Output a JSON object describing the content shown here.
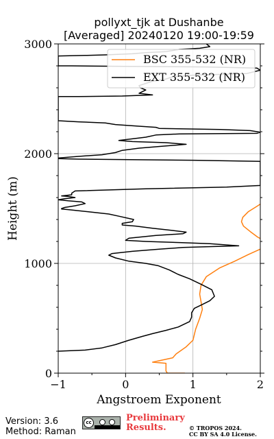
{
  "chart_data": {
    "type": "line",
    "title": "pollyxt_tjk at Dushanbe",
    "subtitle": "[Averaged] 20240120 19:00-19:59",
    "xlabel": "Angstroem Exponent",
    "ylabel": "Height (m)",
    "xlim": [
      -1,
      2
    ],
    "ylim": [
      0,
      3000
    ],
    "xticks": [
      -1,
      0,
      1,
      2
    ],
    "yticks": [
      0,
      1000,
      2000,
      3000
    ],
    "grid": true,
    "legend_position": "upper right",
    "series": [
      {
        "name": "BSC 355-532 (NR)",
        "color": "#ff7f0e",
        "points": [
          [
            0.88,
            0
          ],
          [
            0.62,
            0
          ],
          [
            0.6,
            20
          ],
          [
            0.6,
            90
          ],
          [
            0.4,
            100
          ],
          [
            0.7,
            140
          ],
          [
            0.75,
            175
          ],
          [
            0.9,
            240
          ],
          [
            1.0,
            300
          ],
          [
            1.04,
            400
          ],
          [
            1.1,
            500
          ],
          [
            1.14,
            580
          ],
          [
            1.12,
            650
          ],
          [
            1.1,
            720
          ],
          [
            1.12,
            800
          ],
          [
            1.2,
            880
          ],
          [
            1.4,
            960
          ],
          [
            1.62,
            1020
          ],
          [
            1.82,
            1080
          ],
          [
            2.0,
            1130
          ],
          [
            2.05,
            1170
          ],
          [
            2.05,
            1210
          ],
          [
            1.96,
            1240
          ],
          [
            1.85,
            1290
          ],
          [
            1.75,
            1340
          ],
          [
            1.72,
            1380
          ],
          [
            1.74,
            1420
          ],
          [
            1.82,
            1470
          ],
          [
            1.95,
            1520
          ],
          [
            2.05,
            1560
          ]
        ]
      },
      {
        "name": "EXT 355-532 (NR)",
        "color": "#000000",
        "points": [
          [
            -1.0,
            200
          ],
          [
            -0.6,
            210
          ],
          [
            -0.35,
            230
          ],
          [
            -0.15,
            260
          ],
          [
            0.05,
            300
          ],
          [
            0.25,
            335
          ],
          [
            0.4,
            360
          ],
          [
            0.6,
            390
          ],
          [
            0.78,
            420
          ],
          [
            0.95,
            470
          ],
          [
            0.98,
            510
          ],
          [
            0.98,
            550
          ],
          [
            1.02,
            590
          ],
          [
            1.12,
            620
          ],
          [
            1.25,
            660
          ],
          [
            1.32,
            700
          ],
          [
            1.28,
            760
          ],
          [
            1.12,
            810
          ],
          [
            0.95,
            860
          ],
          [
            0.78,
            900
          ],
          [
            0.65,
            940
          ],
          [
            0.48,
            980
          ],
          [
            0.3,
            1000
          ],
          [
            0.05,
            1020
          ],
          [
            -0.15,
            1050
          ],
          [
            -0.25,
            1075
          ],
          [
            -0.2,
            1090
          ],
          [
            0.1,
            1110
          ],
          [
            0.5,
            1130
          ],
          [
            0.85,
            1145
          ],
          [
            1.1,
            1150
          ],
          [
            1.68,
            1160
          ],
          [
            1.25,
            1180
          ],
          [
            0.8,
            1190
          ],
          [
            0.3,
            1200
          ],
          [
            0.0,
            1210
          ],
          [
            0.05,
            1230
          ],
          [
            0.45,
            1255
          ],
          [
            0.85,
            1270
          ],
          [
            0.9,
            1285
          ],
          [
            0.7,
            1300
          ],
          [
            0.4,
            1320
          ],
          [
            0.15,
            1340
          ],
          [
            -0.05,
            1350
          ],
          [
            -0.05,
            1365
          ],
          [
            0.1,
            1380
          ],
          [
            0.12,
            1400
          ],
          [
            -0.1,
            1430
          ],
          [
            -0.25,
            1450
          ],
          [
            -0.55,
            1470
          ],
          [
            -0.85,
            1490
          ],
          [
            -0.95,
            1495
          ],
          [
            -0.95,
            1500
          ],
          [
            -0.9,
            1510
          ],
          [
            -0.75,
            1525
          ],
          [
            -0.6,
            1545
          ],
          [
            -0.65,
            1560
          ],
          [
            -0.85,
            1570
          ],
          [
            -1.0,
            1580
          ],
          [
            -0.9,
            1590
          ],
          [
            -0.75,
            1600
          ],
          [
            -0.85,
            1610
          ],
          [
            -0.95,
            1615
          ],
          [
            -0.8,
            1625
          ],
          [
            -0.8,
            1640
          ],
          [
            -0.75,
            1660
          ],
          [
            0.3,
            1680
          ],
          [
            1.5,
            1695
          ],
          [
            2.0,
            1710
          ],
          [
            2.0,
            1930
          ],
          [
            1.0,
            1940
          ],
          [
            -0.7,
            1950
          ],
          [
            -1.0,
            1955
          ],
          [
            -1.0,
            1960
          ],
          [
            -0.7,
            1975
          ],
          [
            -0.35,
            1990
          ],
          [
            -0.15,
            2010
          ],
          [
            -0.05,
            2030
          ],
          [
            0.2,
            2050
          ],
          [
            0.6,
            2070
          ],
          [
            0.9,
            2085
          ],
          [
            0.6,
            2100
          ],
          [
            0.1,
            2110
          ],
          [
            -0.1,
            2120
          ],
          [
            0.1,
            2135
          ],
          [
            0.3,
            2150
          ],
          [
            0.45,
            2170
          ],
          [
            0.8,
            2180
          ],
          [
            1.95,
            2185
          ],
          [
            2.0,
            2195
          ],
          [
            1.85,
            2210
          ],
          [
            1.4,
            2220
          ],
          [
            0.5,
            2230
          ],
          [
            0.45,
            2240
          ],
          [
            0.2,
            2250
          ],
          [
            -0.15,
            2265
          ],
          [
            -0.3,
            2280
          ],
          [
            -0.7,
            2290
          ],
          [
            -1.0,
            2300
          ],
          [
            -1.0,
            2520
          ],
          [
            -0.7,
            2520
          ],
          [
            -0.05,
            2525
          ],
          [
            0.4,
            2535
          ],
          [
            0.2,
            2550
          ],
          [
            0.25,
            2565
          ],
          [
            0.3,
            2580
          ],
          [
            0.22,
            2600
          ],
          [
            0.2,
            2620
          ],
          [
            0.3,
            2640
          ],
          [
            0.4,
            2660
          ],
          [
            0.6,
            2680
          ],
          [
            0.7,
            2700
          ],
          [
            1.0,
            2715
          ],
          [
            1.8,
            2730
          ],
          [
            2.0,
            2760
          ],
          [
            1.95,
            2780
          ],
          [
            1.2,
            2790
          ],
          [
            0.0,
            2795
          ],
          [
            -0.8,
            2800
          ],
          [
            -1.0,
            2800
          ],
          [
            -1.0,
            2890
          ],
          [
            -0.6,
            2895
          ],
          [
            -0.3,
            2900
          ],
          [
            0.1,
            2910
          ],
          [
            0.3,
            2920
          ],
          [
            0.6,
            2930
          ],
          [
            0.8,
            2950
          ],
          [
            1.1,
            2960
          ],
          [
            1.25,
            2975
          ],
          [
            1.2,
            3000
          ]
        ]
      }
    ]
  },
  "footer": {
    "version": "Version: 3.6",
    "method": "Method: Raman",
    "preliminary_line1": "Preliminary",
    "preliminary_line2": "Results.",
    "copyright_line1": "© TROPOS 2024.",
    "copyright_line2": "CC BY SA 4.0 License.",
    "cc_label": "cc"
  }
}
